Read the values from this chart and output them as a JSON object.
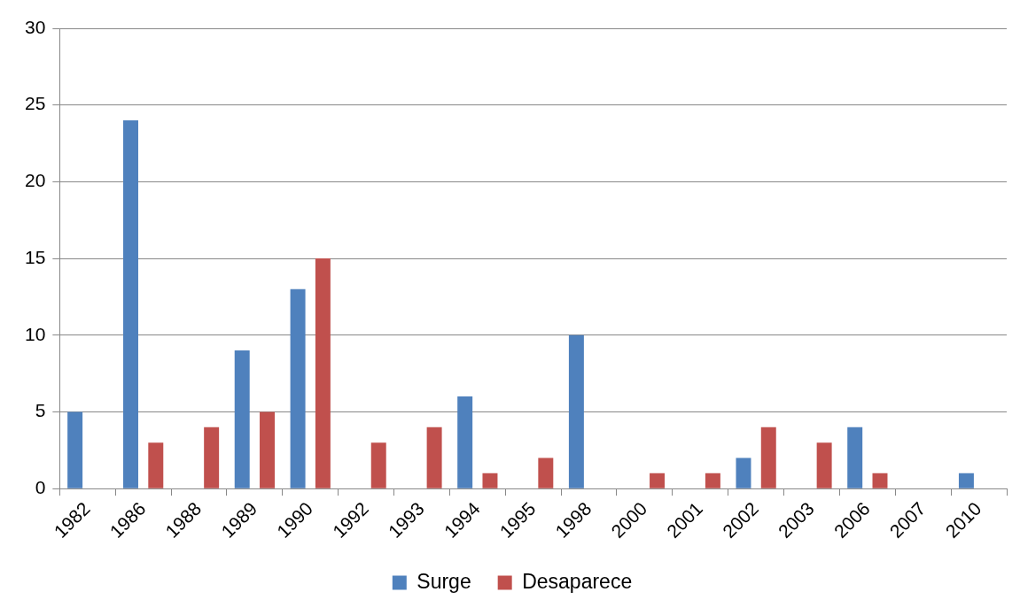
{
  "chart_data": {
    "type": "bar",
    "categories": [
      "1982",
      "1986",
      "1988",
      "1989",
      "1990",
      "1992",
      "1993",
      "1994",
      "1995",
      "1998",
      "2000",
      "2001",
      "2002",
      "2003",
      "2006",
      "2007",
      "2010"
    ],
    "series": [
      {
        "name": "Surge",
        "color": "#4f81bd",
        "values": [
          5,
          24,
          0,
          9,
          13,
          0,
          0,
          6,
          0,
          10,
          0,
          0,
          2,
          0,
          4,
          0,
          1
        ]
      },
      {
        "name": "Desaparece",
        "color": "#c0504d",
        "values": [
          0,
          3,
          4,
          5,
          15,
          3,
          4,
          1,
          2,
          0,
          1,
          1,
          4,
          3,
          1,
          0,
          0
        ]
      }
    ],
    "ylim": [
      0,
      30
    ],
    "yticks": [
      0,
      5,
      10,
      15,
      20,
      25,
      30
    ],
    "grid": "y",
    "legend": "bottom"
  }
}
